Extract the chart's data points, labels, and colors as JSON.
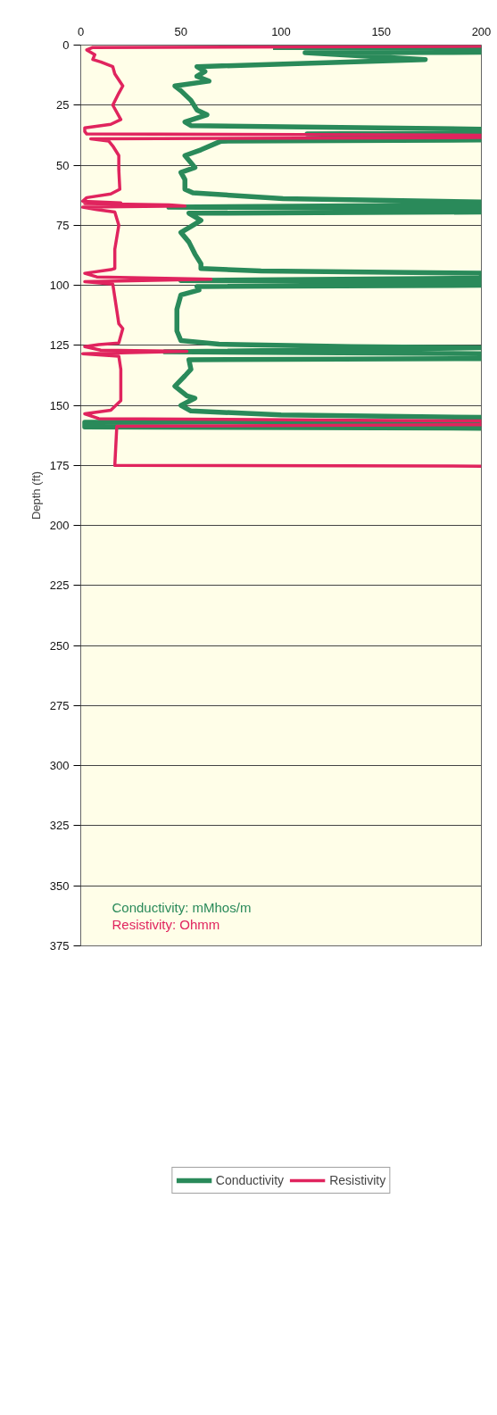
{
  "chart_data": {
    "type": "line",
    "ylabel": "Depth (ft)",
    "xlim": [
      0,
      200
    ],
    "xticks": [
      0,
      50,
      100,
      150,
      200
    ],
    "ylim": [
      375,
      0
    ],
    "yticks": [
      0,
      25,
      50,
      75,
      100,
      125,
      150,
      175,
      200,
      225,
      250,
      275,
      300,
      325,
      350,
      375
    ],
    "grid": "y",
    "legend": "bottom",
    "line_style": "solid",
    "annotations": [
      "Conductivity: mMhos/m",
      "Resistivity: Ohmm"
    ],
    "series": [
      {
        "name": "Conductivity",
        "color": "#2a8a5a",
        "x": [
          96,
          200,
          200,
          112,
          172,
          58,
          62,
          58,
          64,
          47,
          50,
          55,
          58,
          63,
          52,
          55,
          200,
          200,
          113,
          200,
          200,
          70,
          60,
          52,
          55,
          57,
          50,
          52,
          52,
          56,
          101,
          200,
          160,
          200,
          44,
          200,
          200,
          54,
          60,
          56,
          50,
          54,
          57,
          60,
          60,
          90,
          200,
          200,
          50,
          200,
          200,
          58,
          59,
          50,
          48,
          48,
          48,
          50,
          69,
          135,
          200,
          42,
          200,
          200,
          54,
          55,
          52,
          47,
          53,
          57,
          50,
          55,
          100,
          200,
          200,
          200,
          2,
          2,
          200
        ],
        "values": [
          1,
          1,
          3,
          3.2,
          6,
          9,
          11,
          13,
          15,
          17,
          19,
          23,
          27,
          29,
          32,
          33.5,
          35,
          36.5,
          37,
          38,
          39.5,
          40,
          43.6,
          46,
          49,
          51,
          53,
          56,
          60,
          61.5,
          63.9,
          65.3,
          66,
          66.5,
          67.5,
          68,
          69.5,
          70,
          73,
          75,
          78,
          82,
          87,
          91,
          93,
          94,
          95,
          97,
          98,
          99,
          100,
          100.5,
          102,
          104,
          110,
          117,
          119,
          123,
          124.5,
          125.5,
          126,
          127.7,
          128.5,
          130.5,
          131,
          135,
          137.7,
          142,
          146,
          147,
          150,
          152.3,
          154,
          155,
          156,
          156.8,
          157,
          159,
          159.5
        ]
      },
      {
        "name": "Resistivity",
        "color": "#e0245e",
        "x": [
          200,
          6,
          3,
          7,
          6,
          10,
          16,
          17,
          21,
          19,
          16,
          20,
          15,
          2,
          2,
          3,
          200,
          200,
          5,
          14,
          16,
          19,
          19,
          19.5,
          15,
          3,
          1,
          20,
          2,
          44,
          52,
          1,
          8,
          17,
          19,
          17,
          17,
          15,
          2,
          8,
          65,
          2,
          16,
          17,
          19,
          21,
          19,
          9,
          2,
          10,
          53,
          1,
          19,
          20,
          20,
          20,
          15,
          2,
          9,
          200,
          200,
          18,
          17,
          200
        ],
        "values": [
          0.5,
          1,
          2,
          4,
          6,
          7,
          9,
          12,
          17,
          20,
          25,
          31,
          33,
          34.5,
          36,
          37,
          37.5,
          38.5,
          39,
          40,
          42,
          46,
          52,
          60,
          62,
          63.5,
          65,
          65.7,
          66,
          66.5,
          67,
          67.5,
          68.5,
          69.5,
          75,
          85,
          93,
          93.5,
          95,
          96.5,
          97.5,
          98.5,
          99.5,
          105,
          116,
          118,
          124,
          124.7,
          125.5,
          127,
          127.5,
          128.5,
          129.5,
          135,
          145,
          148,
          152,
          153.5,
          155.5,
          156.5,
          158,
          158.7,
          175,
          175.3
        ]
      }
    ]
  }
}
